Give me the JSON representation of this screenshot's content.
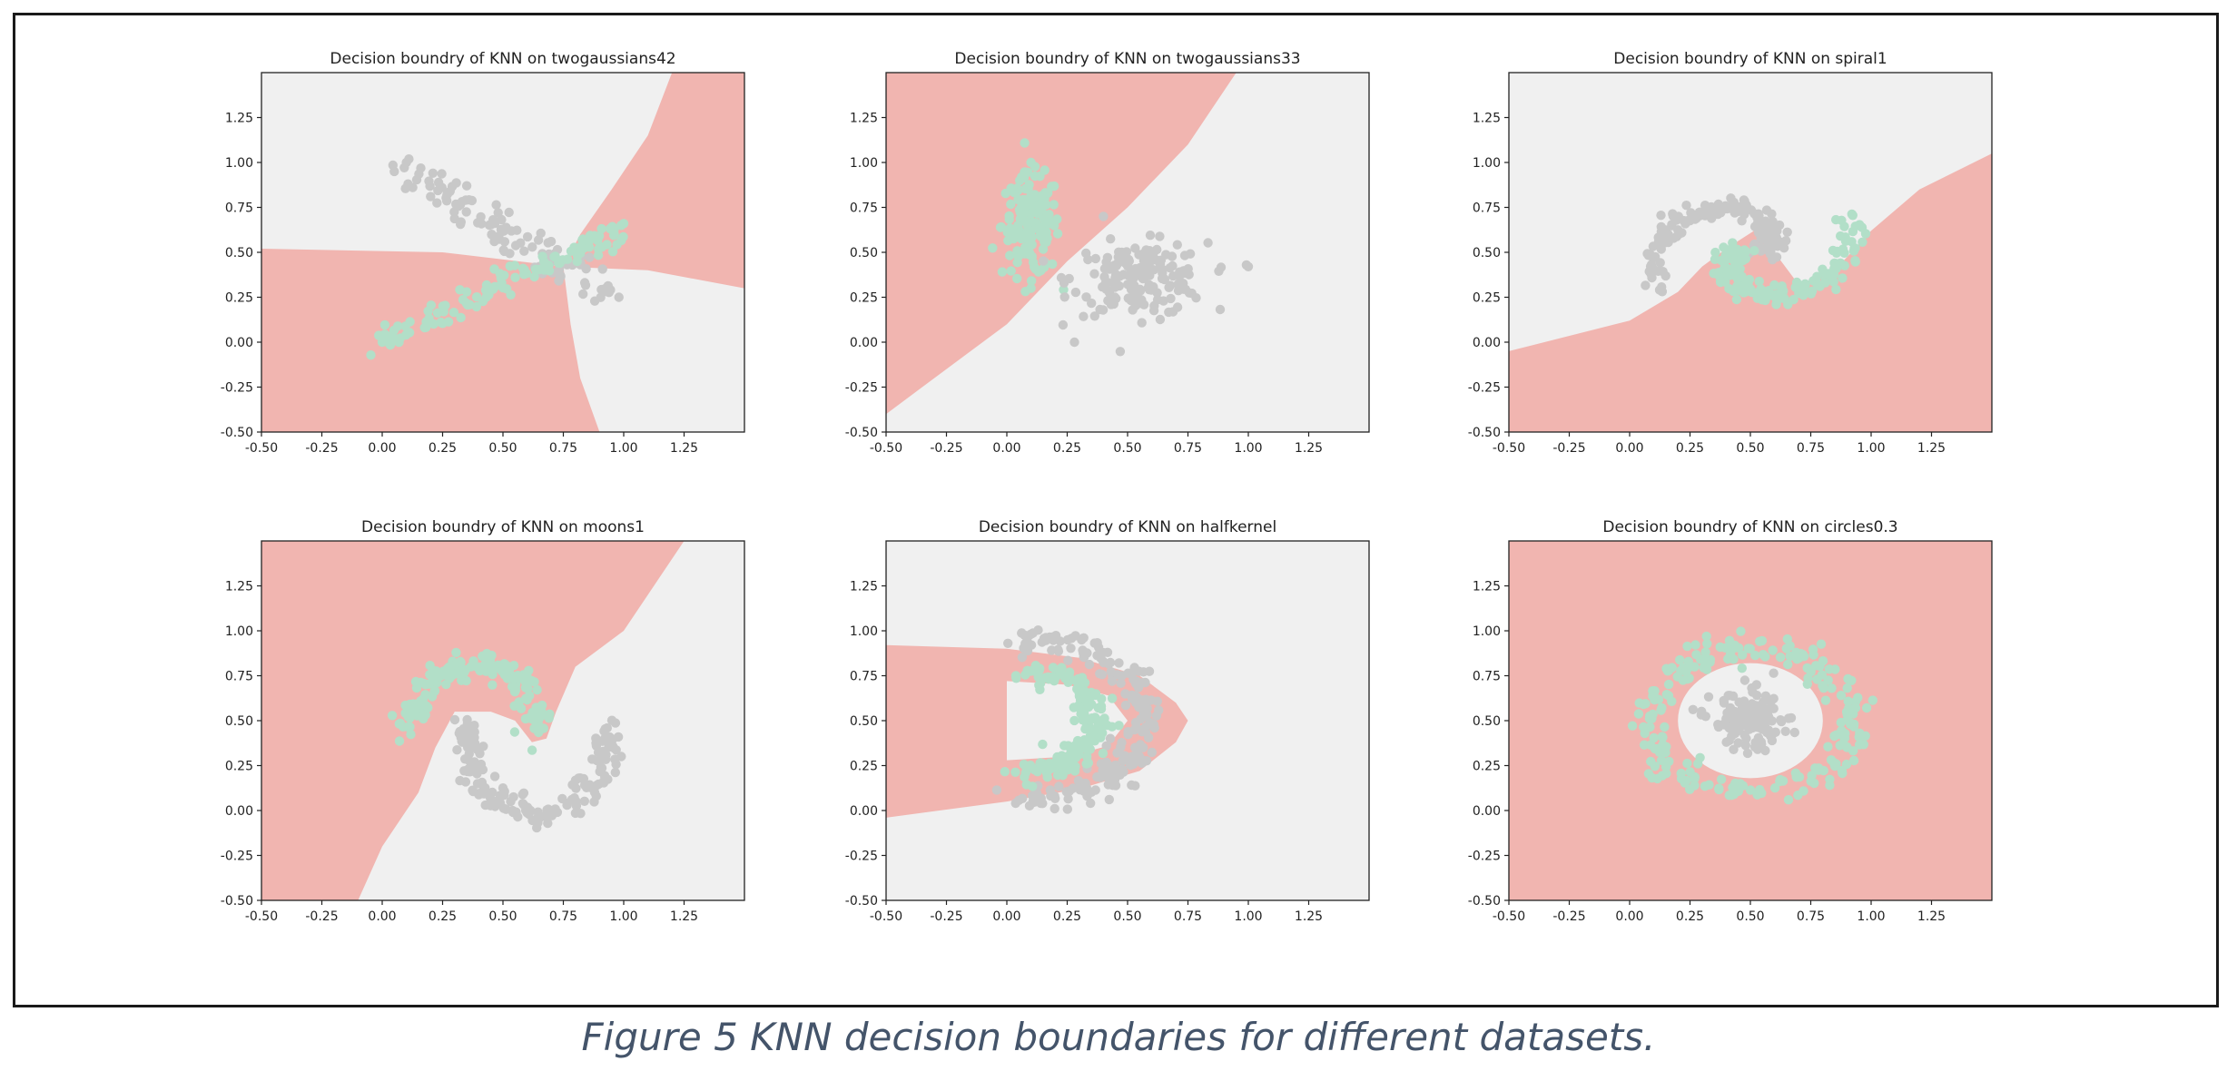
{
  "figure": {
    "caption": "Figure 5 KNN decision boundaries for different datasets."
  },
  "colors": {
    "class_0_region": "#f0f0f0",
    "class_1_region": "#f1b5b0",
    "class_0_points": "#c8c8c8",
    "class_1_points": "#b2dfc8",
    "frame": "#1a1a1a",
    "caption": "#44546a"
  },
  "chart_data": [
    {
      "type": "scatter",
      "title": "Decision boundry of KNN on twogaussians42",
      "dataset": "twogaussians42",
      "xlim": [
        -0.5,
        1.5
      ],
      "ylim": [
        -0.5,
        1.5
      ],
      "xticks": [
        "-0.50",
        "-0.25",
        "0.00",
        "0.25",
        "0.50",
        "0.75",
        "1.00",
        "1.25"
      ],
      "yticks": [
        "-0.50",
        "-0.25",
        "0.00",
        "0.25",
        "0.50",
        "0.75",
        "1.00",
        "1.25"
      ],
      "regions": [
        {
          "class": 1,
          "polygon": [
            [
              -0.5,
              0.52
            ],
            [
              0.25,
              0.5
            ],
            [
              0.75,
              0.42
            ],
            [
              0.78,
              0.1
            ],
            [
              0.82,
              -0.2
            ],
            [
              0.9,
              -0.5
            ],
            [
              -0.5,
              -0.5
            ]
          ]
        },
        {
          "class": 1,
          "polygon": [
            [
              0.75,
              0.42
            ],
            [
              0.82,
              0.6
            ],
            [
              0.95,
              0.85
            ],
            [
              1.1,
              1.15
            ],
            [
              1.2,
              1.5
            ],
            [
              1.5,
              1.5
            ],
            [
              1.5,
              0.3
            ],
            [
              1.1,
              0.4
            ]
          ]
        }
      ],
      "series": [
        {
          "class": 0,
          "segment": {
            "from": [
              0.05,
              1.0
            ],
            "to": [
              0.95,
              0.25
            ]
          },
          "spread": [
            0.05,
            0.05
          ],
          "n": 110,
          "extra": [
            [
              0.05,
              0.95
            ],
            [
              0.1,
              1.0
            ],
            [
              0.98,
              0.25
            ],
            [
              0.35,
              0.87
            ],
            [
              0.48,
              0.72
            ]
          ]
        },
        {
          "class": 1,
          "segment": {
            "from": [
              0.0,
              0.0
            ],
            "to": [
              1.0,
              0.62
            ]
          },
          "spread": [
            0.04,
            0.03
          ],
          "n": 110,
          "extra": [
            [
              0.0,
              0.0
            ],
            [
              1.0,
              0.66
            ]
          ]
        }
      ]
    },
    {
      "type": "scatter",
      "title": "Decision boundry of KNN on twogaussians33",
      "dataset": "twogaussians33",
      "xlim": [
        -0.5,
        1.5
      ],
      "ylim": [
        -0.5,
        1.5
      ],
      "xticks": [
        "-0.50",
        "-0.25",
        "0.00",
        "0.25",
        "0.50",
        "0.75",
        "1.00",
        "1.25"
      ],
      "yticks": [
        "-0.50",
        "-0.25",
        "0.00",
        "0.25",
        "0.50",
        "0.75",
        "1.00",
        "1.25"
      ],
      "regions": [
        {
          "class": 1,
          "polygon": [
            [
              -0.5,
              -0.4
            ],
            [
              0.0,
              0.1
            ],
            [
              0.25,
              0.45
            ],
            [
              0.5,
              0.75
            ],
            [
              0.75,
              1.1
            ],
            [
              0.95,
              1.5
            ],
            [
              -0.5,
              1.5
            ]
          ]
        }
      ],
      "series": [
        {
          "class": 1,
          "gaussian": {
            "mean": [
              0.1,
              0.65
            ],
            "sd": [
              0.06,
              0.14
            ]
          },
          "n": 150,
          "extra": [
            [
              0.1,
              1.0
            ],
            [
              0.1,
              0.3
            ]
          ]
        },
        {
          "class": 0,
          "gaussian": {
            "mean": [
              0.55,
              0.35
            ],
            "sd": [
              0.14,
              0.1
            ]
          },
          "n": 170,
          "extra": [
            [
              1.0,
              0.42
            ],
            [
              0.28,
              0.0
            ],
            [
              0.4,
              0.7
            ]
          ]
        }
      ]
    },
    {
      "type": "scatter",
      "title": "Decision boundry of KNN on spiral1",
      "dataset": "spiral1",
      "xlim": [
        -0.5,
        1.5
      ],
      "ylim": [
        -0.5,
        1.5
      ],
      "xticks": [
        "-0.50",
        "-0.25",
        "0.00",
        "0.25",
        "0.50",
        "0.75",
        "1.00",
        "1.25"
      ],
      "yticks": [
        "-0.50",
        "-0.25",
        "0.00",
        "0.25",
        "0.50",
        "0.75",
        "1.00",
        "1.25"
      ],
      "regions": [
        {
          "class": 1,
          "polygon": [
            [
              -0.5,
              -0.05
            ],
            [
              0.0,
              0.12
            ],
            [
              0.2,
              0.28
            ],
            [
              0.3,
              0.42
            ],
            [
              0.4,
              0.52
            ],
            [
              0.55,
              0.65
            ],
            [
              0.6,
              0.5
            ],
            [
              0.7,
              0.32
            ],
            [
              0.85,
              0.4
            ],
            [
              1.0,
              0.62
            ],
            [
              1.2,
              0.85
            ],
            [
              1.5,
              1.05
            ],
            [
              1.5,
              -0.5
            ],
            [
              -0.5,
              -0.5
            ]
          ]
        }
      ],
      "series": [
        {
          "class": 0,
          "spiral": {
            "center": [
              0.5,
              0.5
            ],
            "r0": 0.05,
            "r1": 0.45,
            "t0": 0.0,
            "t1": 3.6,
            "phase": 0.0
          },
          "spread": 0.03,
          "n": 170
        },
        {
          "class": 1,
          "spiral": {
            "center": [
              0.5,
              0.5
            ],
            "r0": 0.05,
            "r1": 0.45,
            "t0": 0.0,
            "t1": 3.6,
            "phase": 3.14159
          },
          "spread": 0.03,
          "n": 170
        }
      ]
    },
    {
      "type": "scatter",
      "title": "Decision boundry of KNN on moons1",
      "dataset": "moons1",
      "xlim": [
        -0.5,
        1.5
      ],
      "ylim": [
        -0.5,
        1.5
      ],
      "xticks": [
        "-0.50",
        "-0.25",
        "0.00",
        "0.25",
        "0.50",
        "0.75",
        "1.00",
        "1.25"
      ],
      "yticks": [
        "-0.50",
        "-0.25",
        "0.00",
        "0.25",
        "0.50",
        "0.75",
        "1.00",
        "1.25"
      ],
      "regions": [
        {
          "class": 1,
          "polygon": [
            [
              -0.5,
              1.5
            ],
            [
              1.25,
              1.5
            ],
            [
              1.0,
              1.0
            ],
            [
              0.8,
              0.8
            ],
            [
              0.72,
              0.55
            ],
            [
              0.68,
              0.4
            ],
            [
              0.62,
              0.38
            ],
            [
              0.55,
              0.5
            ],
            [
              0.45,
              0.55
            ],
            [
              0.3,
              0.55
            ],
            [
              0.22,
              0.35
            ],
            [
              0.15,
              0.1
            ],
            [
              0.0,
              -0.2
            ],
            [
              -0.1,
              -0.5
            ],
            [
              -0.5,
              -0.5
            ]
          ]
        }
      ],
      "series": [
        {
          "class": 1,
          "moon": {
            "center": [
              0.38,
              0.5
            ],
            "rx": 0.27,
            "ry": 0.42,
            "a0": 0.0,
            "a1": 3.14159,
            "flip": false
          },
          "spread": 0.035,
          "n": 170
        },
        {
          "class": 0,
          "moon": {
            "center": [
              0.62,
              0.6
            ],
            "rx": 0.3,
            "ry": 0.5,
            "a0": 0.0,
            "a1": 3.14159,
            "flip": true
          },
          "spread": 0.035,
          "n": 170
        }
      ]
    },
    {
      "type": "scatter",
      "title": "Decision boundry of KNN on halfkernel",
      "dataset": "halfkernel",
      "xlim": [
        -0.5,
        1.5
      ],
      "ylim": [
        -0.5,
        1.5
      ],
      "xticks": [
        "-0.50",
        "-0.25",
        "0.00",
        "0.25",
        "0.50",
        "0.75",
        "1.00",
        "1.25"
      ],
      "yticks": [
        "-0.50",
        "-0.25",
        "0.00",
        "0.25",
        "0.50",
        "0.75",
        "1.00",
        "1.25"
      ],
      "regions": [
        {
          "class": 1,
          "polygon": [
            [
              -0.5,
              0.92
            ],
            [
              0.0,
              0.9
            ],
            [
              0.3,
              0.85
            ],
            [
              0.55,
              0.75
            ],
            [
              0.7,
              0.6
            ],
            [
              0.75,
              0.5
            ],
            [
              0.7,
              0.38
            ],
            [
              0.55,
              0.22
            ],
            [
              0.3,
              0.12
            ],
            [
              0.0,
              0.05
            ],
            [
              -0.5,
              -0.04
            ]
          ]
        },
        {
          "class": 0,
          "polygon": [
            [
              0.0,
              0.72
            ],
            [
              0.25,
              0.7
            ],
            [
              0.42,
              0.64
            ],
            [
              0.5,
              0.5
            ],
            [
              0.42,
              0.36
            ],
            [
              0.25,
              0.3
            ],
            [
              0.0,
              0.28
            ]
          ]
        }
      ],
      "series": [
        {
          "class": 0,
          "halfring": {
            "center": [
              0.0,
              0.5
            ],
            "rx": 0.97,
            "ry": 0.45
          },
          "spread": 0.04,
          "n": 210
        },
        {
          "class": 1,
          "halfring": {
            "center": [
              0.0,
              0.5
            ],
            "rx": 0.58,
            "ry": 0.28
          },
          "spread": 0.035,
          "n": 170
        }
      ]
    },
    {
      "type": "scatter",
      "title": "Decision boundry of KNN on circles0.3",
      "dataset": "circles0.3",
      "xlim": [
        -0.5,
        1.5
      ],
      "ylim": [
        -0.5,
        1.5
      ],
      "xticks": [
        "-0.50",
        "-0.25",
        "0.00",
        "0.25",
        "0.50",
        "0.75",
        "1.00",
        "1.25"
      ],
      "yticks": [
        "-0.50",
        "-0.25",
        "0.00",
        "0.25",
        "0.50",
        "0.75",
        "1.00",
        "1.25"
      ],
      "background_class": 1,
      "regions": [
        {
          "class": 0,
          "ellipse": {
            "center": [
              0.5,
              0.5
            ],
            "rx": 0.3,
            "ry": 0.32
          }
        }
      ],
      "series": [
        {
          "class": 1,
          "ring": {
            "center": [
              0.5,
              0.5
            ],
            "rx": 0.42,
            "ry": 0.4
          },
          "spread": 0.04,
          "n": 230
        },
        {
          "class": 0,
          "gaussian": {
            "mean": [
              0.5,
              0.5
            ],
            "sd": [
              0.08,
              0.08
            ]
          },
          "n": 130
        }
      ]
    }
  ]
}
